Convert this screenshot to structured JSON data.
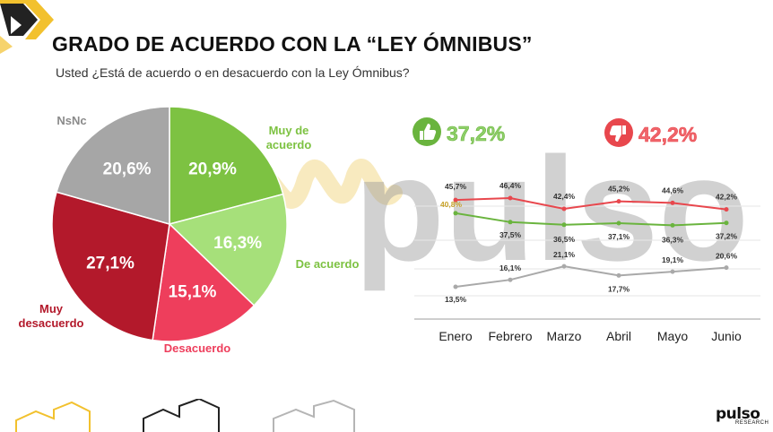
{
  "header": {
    "title": "GRADO DE ACUERDO CON LA “LEY ÓMNIBUS”",
    "subtitle": "Usted ¿Está de acuerdo o en desacuerdo con la Ley Ómnibus?"
  },
  "brand": {
    "word": "pulso",
    "sub": "RESEARCH",
    "watermark": "pulso"
  },
  "summary": {
    "agree": {
      "value": "37,2%",
      "icon": "thumbs-up-icon",
      "color": "#6ab43e"
    },
    "disagree": {
      "value": "42,2%",
      "icon": "thumbs-down-icon",
      "color": "#e8474d"
    }
  },
  "chart_data": [
    {
      "type": "pie",
      "slices": [
        {
          "label": "Muy de acuerdo",
          "value": 20.9,
          "display": "20,9%",
          "color": "#7dc242",
          "label_color": "#7dc242"
        },
        {
          "label": "De acuerdo",
          "value": 16.3,
          "display": "16,3%",
          "color": "#a6e07a",
          "label_color": "#7dc242"
        },
        {
          "label": "Desacuerdo",
          "value": 15.1,
          "display": "15,1%",
          "color": "#ee3e5c",
          "label_color": "#ee3e5c"
        },
        {
          "label": "Muy desacuerdo",
          "value": 27.1,
          "display": "27,1%",
          "color": "#b3192b",
          "label_color": "#b3192b"
        },
        {
          "label": "NsNc",
          "value": 20.6,
          "display": "20,6%",
          "color": "#a6a6a6",
          "label_color": "#8a8a8a"
        }
      ]
    },
    {
      "type": "line",
      "categories": [
        "Enero",
        "Febrero",
        "Marzo",
        "Abril",
        "Mayo",
        "Junio"
      ],
      "ylim": [
        5,
        55
      ],
      "series": [
        {
          "values": [
            45.7,
            46.4,
            42.4,
            45.2,
            44.6,
            42.2
          ],
          "labels": [
            "45,7%",
            "46,4%",
            "42,4%",
            "45,2%",
            "44,6%",
            "42,2%"
          ],
          "color": "#e8474d"
        },
        {
          "values": [
            40.8,
            37.5,
            36.5,
            37.1,
            36.3,
            37.2
          ],
          "labels": [
            "40,8%",
            "37,5%",
            "36,5%",
            "37,1%",
            "36,3%",
            "37,2%"
          ],
          "color": "#6ab43e"
        },
        {
          "values": [
            13.5,
            16.1,
            21.1,
            17.7,
            19.1,
            20.6
          ],
          "labels": [
            "13,5%",
            "16,1%",
            "21,1%",
            "17,7%",
            "19,1%",
            "20,6%"
          ],
          "color": "#a9a9a9"
        }
      ]
    }
  ]
}
